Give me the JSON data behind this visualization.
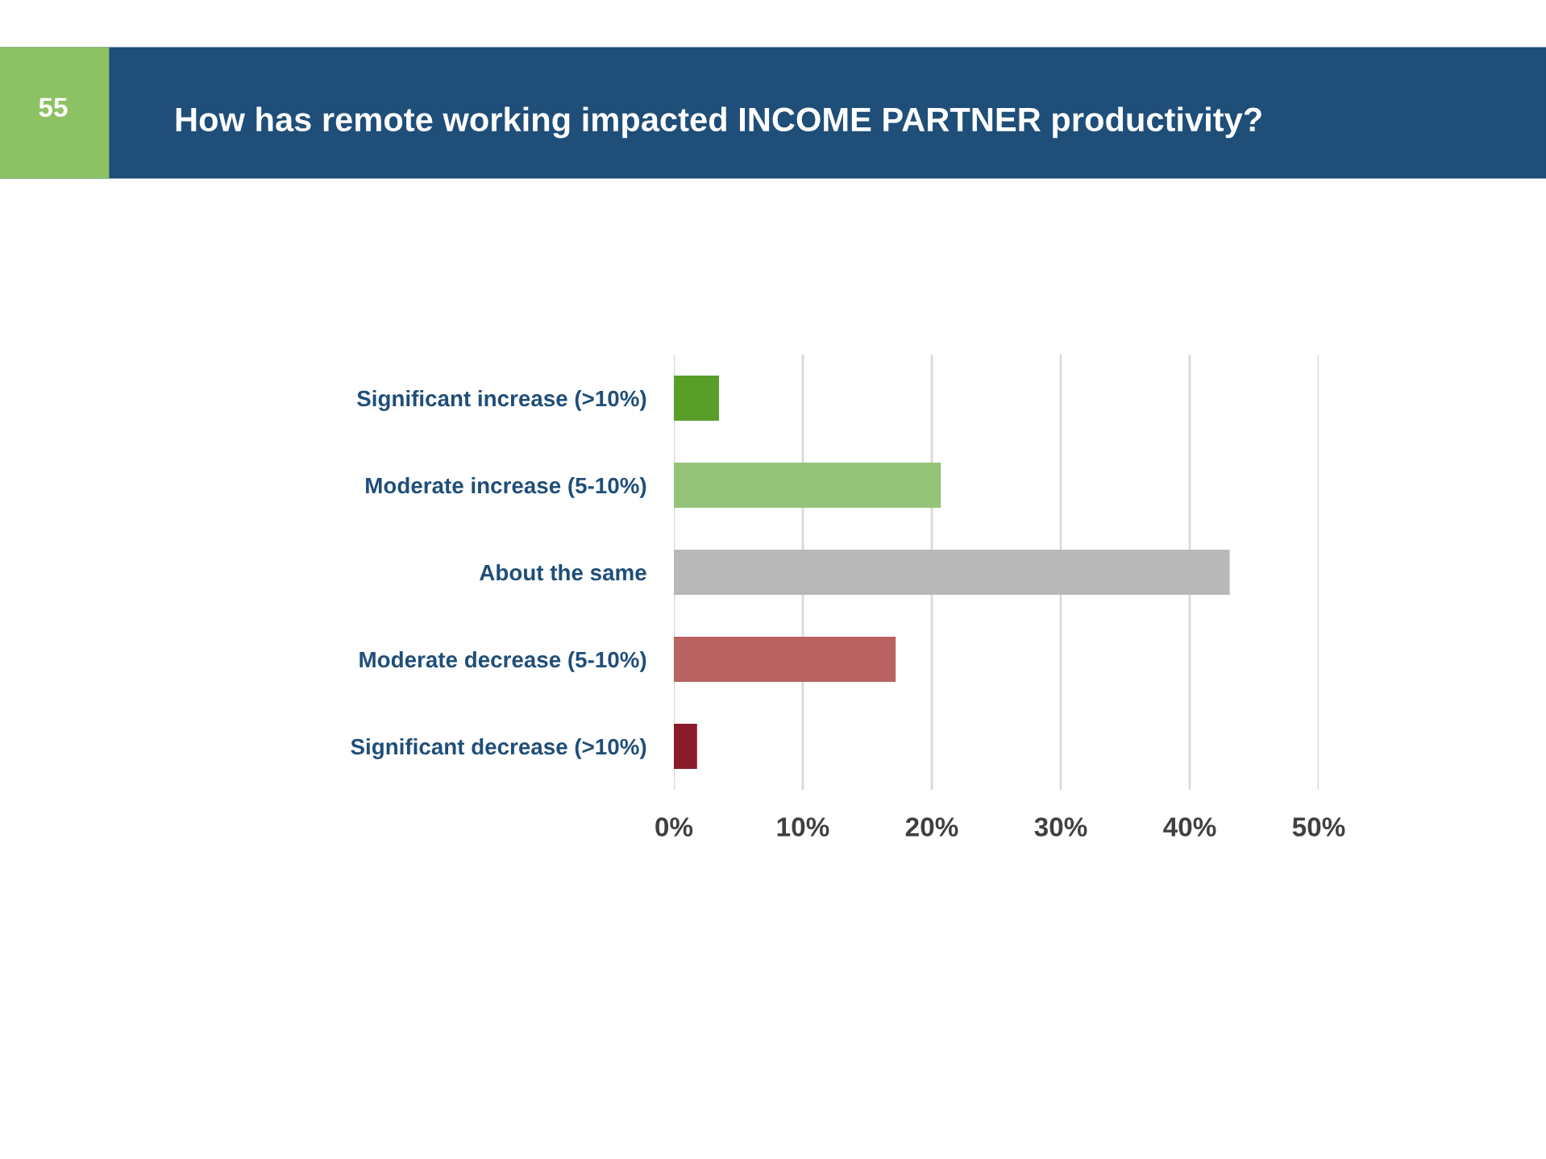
{
  "chart_data": {
    "type": "bar",
    "orientation": "horizontal",
    "title": "How has remote working impacted INCOME PARTNER productivity?",
    "annotations": [
      "55"
    ],
    "categories": [
      "Significant increase (>10%)",
      "Moderate increase (5-10%)",
      "About the same",
      "Moderate decrease (5-10%)",
      "Significant decrease (>10%)"
    ],
    "values": [
      3.5,
      20.7,
      43.1,
      17.2,
      1.8
    ],
    "colors": [
      "#5a9e2a",
      "#94c37a",
      "#b8b8b8",
      "#b86262",
      "#8b1a2a"
    ],
    "xlim": [
      0,
      50
    ],
    "xticks": [
      {
        "value": 0,
        "label": "0%"
      },
      {
        "value": 10,
        "label": "10%"
      },
      {
        "value": 20,
        "label": "20%"
      },
      {
        "value": 30,
        "label": "30%"
      },
      {
        "value": 40,
        "label": "40%"
      },
      {
        "value": 50,
        "label": "50%"
      }
    ],
    "grid": "x",
    "legend": false
  }
}
